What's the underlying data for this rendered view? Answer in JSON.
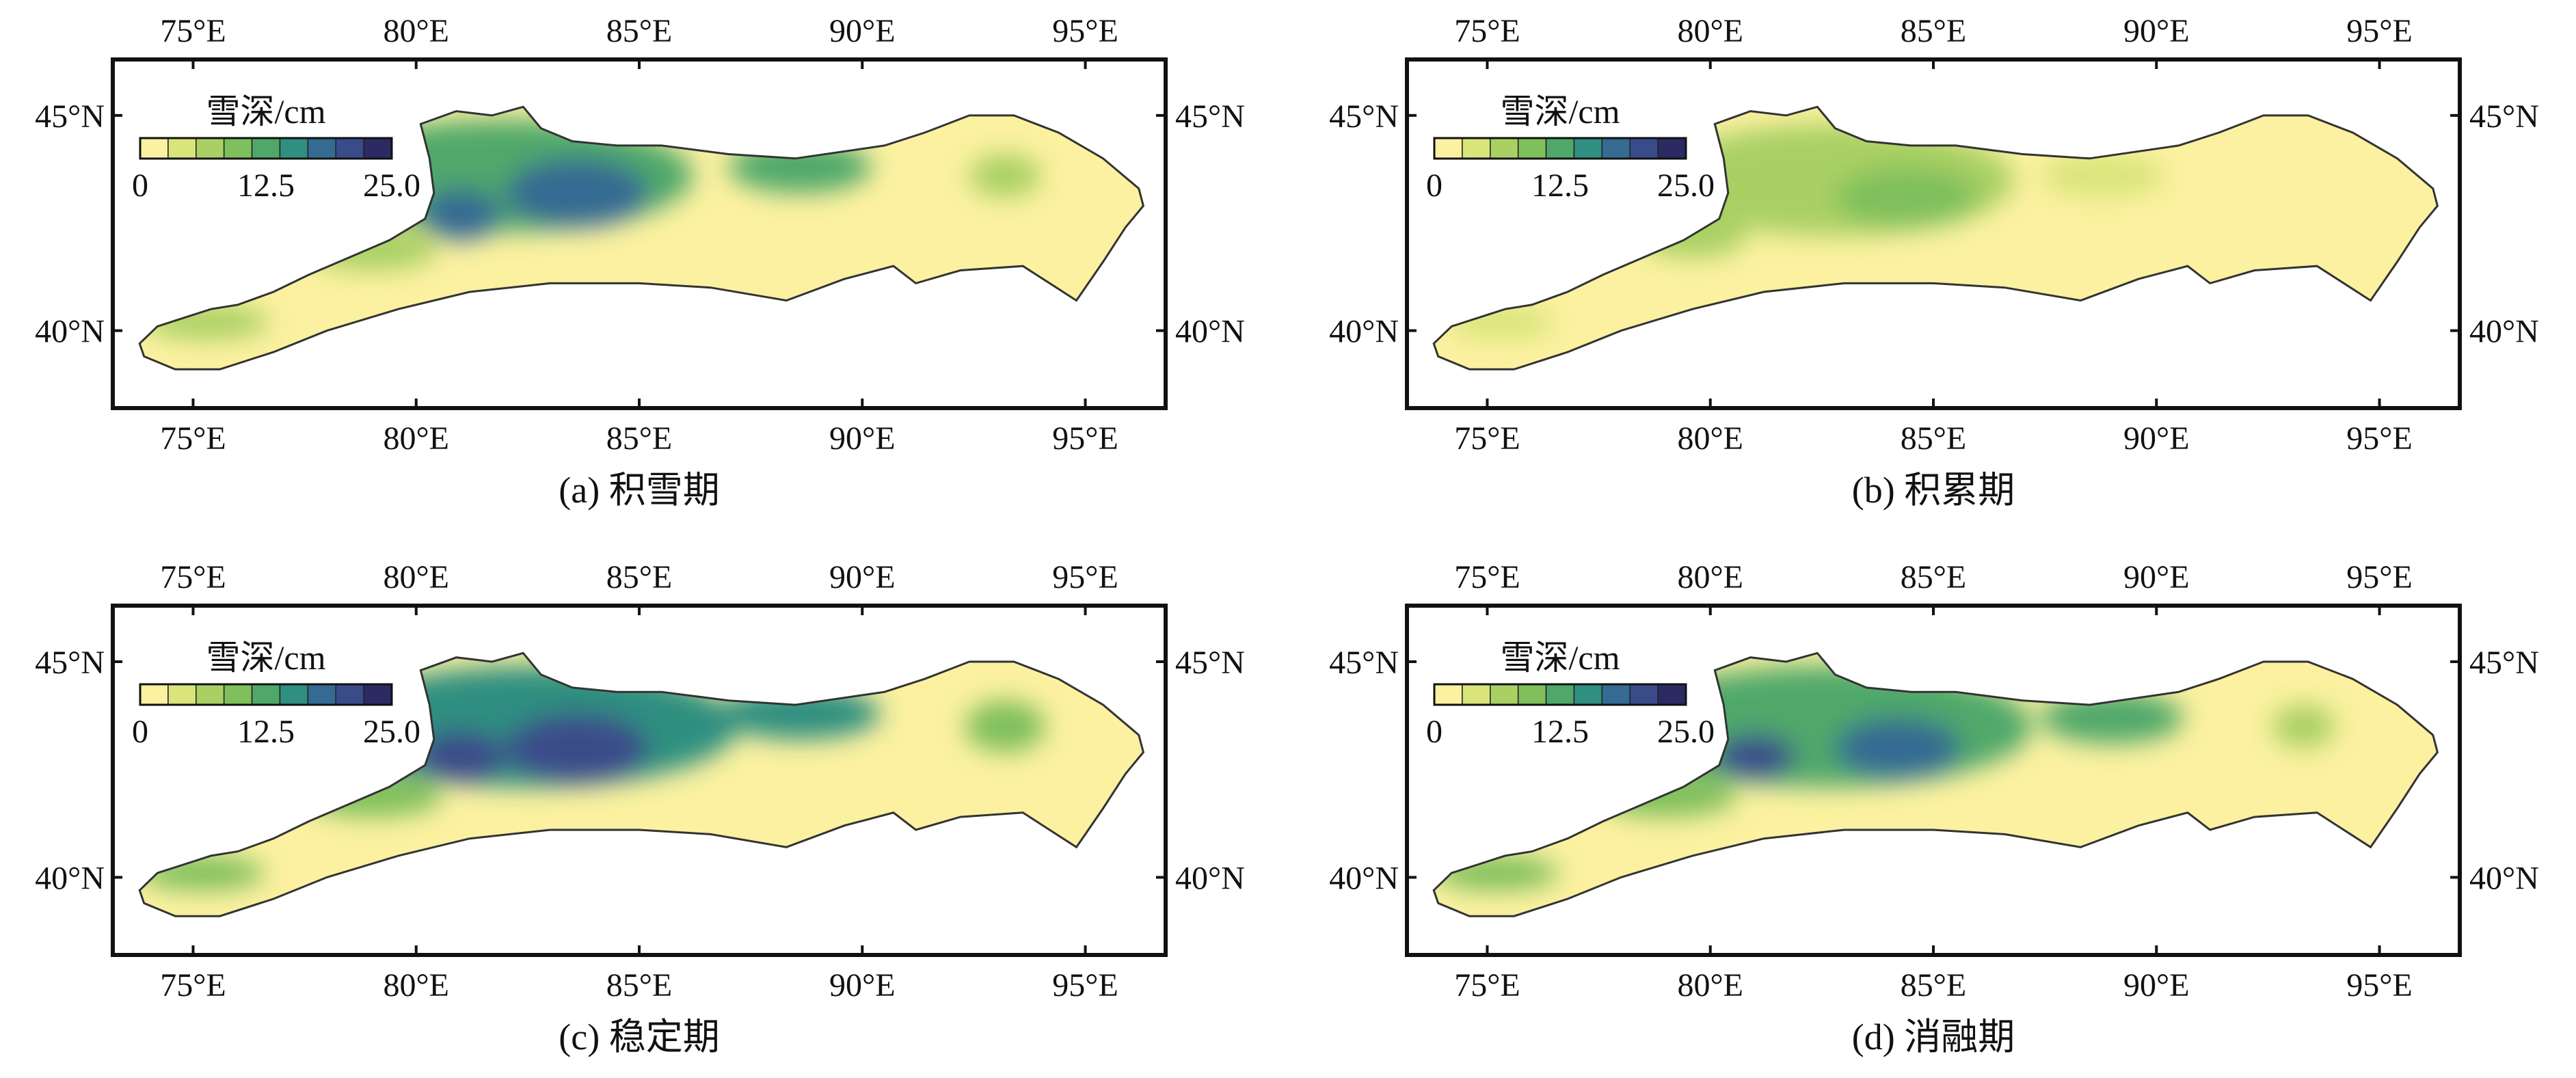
{
  "figure": {
    "panels": [
      {
        "id": "a",
        "caption": "(a) 积雪期",
        "colorbar_title": "雪深/cm",
        "colorbar_ticks": [
          "0",
          "12.5",
          "25.0"
        ],
        "blobs": [
          {
            "lon": 82.0,
            "lat": 43.6,
            "rx": 4.2,
            "ry": 1.3,
            "level": 4
          },
          {
            "lon": 83.6,
            "lat": 43.2,
            "rx": 1.6,
            "ry": 0.8,
            "level": 6
          },
          {
            "lon": 81.0,
            "lat": 42.7,
            "rx": 0.9,
            "ry": 0.6,
            "level": 6
          },
          {
            "lon": 88.6,
            "lat": 43.8,
            "rx": 1.6,
            "ry": 0.6,
            "level": 4
          },
          {
            "lon": 93.2,
            "lat": 43.6,
            "rx": 0.8,
            "ry": 0.5,
            "level": 2
          },
          {
            "lon": 79.0,
            "lat": 41.9,
            "rx": 1.5,
            "ry": 0.5,
            "level": 2
          },
          {
            "lon": 75.3,
            "lat": 40.2,
            "rx": 1.4,
            "ry": 0.4,
            "level": 2
          }
        ]
      },
      {
        "id": "b",
        "caption": "(b) 积累期",
        "colorbar_title": "雪深/cm",
        "colorbar_ticks": [
          "0",
          "12.5",
          "25.0"
        ],
        "blobs": [
          {
            "lon": 82.8,
            "lat": 43.5,
            "rx": 4.0,
            "ry": 1.3,
            "level": 2
          },
          {
            "lon": 84.4,
            "lat": 43.1,
            "rx": 1.6,
            "ry": 0.7,
            "level": 3
          },
          {
            "lon": 88.8,
            "lat": 43.6,
            "rx": 1.4,
            "ry": 0.5,
            "level": 1
          },
          {
            "lon": 79.6,
            "lat": 42.2,
            "rx": 1.2,
            "ry": 0.5,
            "level": 2
          },
          {
            "lon": 75.3,
            "lat": 40.2,
            "rx": 1.2,
            "ry": 0.4,
            "level": 1
          }
        ]
      },
      {
        "id": "c",
        "caption": "(c) 稳定期",
        "colorbar_title": "雪深/cm",
        "colorbar_ticks": [
          "0",
          "12.5",
          "25.0"
        ],
        "blobs": [
          {
            "lon": 82.6,
            "lat": 43.5,
            "rx": 4.6,
            "ry": 1.4,
            "level": 5
          },
          {
            "lon": 83.6,
            "lat": 43.0,
            "rx": 1.6,
            "ry": 0.8,
            "level": 7
          },
          {
            "lon": 81.0,
            "lat": 42.8,
            "rx": 1.0,
            "ry": 0.6,
            "level": 7
          },
          {
            "lon": 88.6,
            "lat": 43.8,
            "rx": 1.8,
            "ry": 0.6,
            "level": 5
          },
          {
            "lon": 93.2,
            "lat": 43.5,
            "rx": 0.9,
            "ry": 0.6,
            "level": 3
          },
          {
            "lon": 79.0,
            "lat": 41.9,
            "rx": 1.6,
            "ry": 0.5,
            "level": 3
          },
          {
            "lon": 75.2,
            "lat": 40.1,
            "rx": 1.4,
            "ry": 0.4,
            "level": 3
          }
        ]
      },
      {
        "id": "d",
        "caption": "(d) 消融期",
        "colorbar_title": "雪深/cm",
        "colorbar_ticks": [
          "0",
          "12.5",
          "25.0"
        ],
        "blobs": [
          {
            "lon": 82.6,
            "lat": 43.5,
            "rx": 4.6,
            "ry": 1.4,
            "level": 4
          },
          {
            "lon": 84.2,
            "lat": 43.0,
            "rx": 1.4,
            "ry": 0.7,
            "level": 6
          },
          {
            "lon": 81.0,
            "lat": 42.8,
            "rx": 0.9,
            "ry": 0.5,
            "level": 7
          },
          {
            "lon": 89.0,
            "lat": 43.7,
            "rx": 1.6,
            "ry": 0.6,
            "level": 4
          },
          {
            "lon": 93.3,
            "lat": 43.5,
            "rx": 0.7,
            "ry": 0.5,
            "level": 2
          },
          {
            "lon": 79.0,
            "lat": 41.9,
            "rx": 1.6,
            "ry": 0.5,
            "level": 3
          },
          {
            "lon": 75.2,
            "lat": 40.1,
            "rx": 1.4,
            "ry": 0.4,
            "level": 3
          }
        ]
      }
    ],
    "axes": {
      "lon_range": [
        73.2,
        96.8
      ],
      "lat_range": [
        38.2,
        46.3
      ],
      "lon_ticks": [
        75,
        80,
        85,
        90,
        95
      ],
      "lat_ticks": [
        40,
        45
      ],
      "lon_tick_labels": [
        "75°E",
        "80°E",
        "85°E",
        "90°E",
        "95°E"
      ],
      "lat_tick_labels": [
        "40°N",
        "45°N"
      ]
    },
    "colormap": [
      "#fbf1a0",
      "#d9e57a",
      "#a9d063",
      "#7fbf5c",
      "#4fa86a",
      "#2f8f80",
      "#356a92",
      "#3a4b8a",
      "#2b2a63"
    ],
    "region_outline": [
      [
        73.8,
        39.7
      ],
      [
        74.2,
        40.1
      ],
      [
        74.8,
        40.3
      ],
      [
        75.4,
        40.5
      ],
      [
        76.0,
        40.6
      ],
      [
        76.8,
        40.9
      ],
      [
        77.6,
        41.3
      ],
      [
        78.5,
        41.7
      ],
      [
        79.4,
        42.1
      ],
      [
        80.2,
        42.6
      ],
      [
        80.4,
        43.2
      ],
      [
        80.3,
        44.0
      ],
      [
        80.1,
        44.8
      ],
      [
        80.9,
        45.1
      ],
      [
        81.7,
        45.0
      ],
      [
        82.4,
        45.2
      ],
      [
        82.8,
        44.7
      ],
      [
        83.5,
        44.4
      ],
      [
        84.5,
        44.3
      ],
      [
        85.5,
        44.3
      ],
      [
        87.0,
        44.1
      ],
      [
        88.5,
        44.0
      ],
      [
        90.5,
        44.3
      ],
      [
        91.4,
        44.6
      ],
      [
        92.4,
        45.0
      ],
      [
        93.4,
        45.0
      ],
      [
        94.4,
        44.6
      ],
      [
        95.4,
        44.0
      ],
      [
        96.2,
        43.3
      ],
      [
        96.3,
        42.9
      ],
      [
        95.9,
        42.4
      ],
      [
        95.4,
        41.6
      ],
      [
        94.8,
        40.7
      ],
      [
        93.6,
        41.5
      ],
      [
        92.2,
        41.4
      ],
      [
        91.2,
        41.1
      ],
      [
        90.7,
        41.5
      ],
      [
        89.6,
        41.2
      ],
      [
        88.3,
        40.7
      ],
      [
        86.6,
        41.0
      ],
      [
        85.0,
        41.1
      ],
      [
        83.0,
        41.1
      ],
      [
        81.2,
        40.9
      ],
      [
        79.6,
        40.5
      ],
      [
        78.0,
        40.0
      ],
      [
        76.8,
        39.5
      ],
      [
        75.6,
        39.1
      ],
      [
        74.6,
        39.1
      ],
      [
        73.9,
        39.4
      ]
    ]
  }
}
